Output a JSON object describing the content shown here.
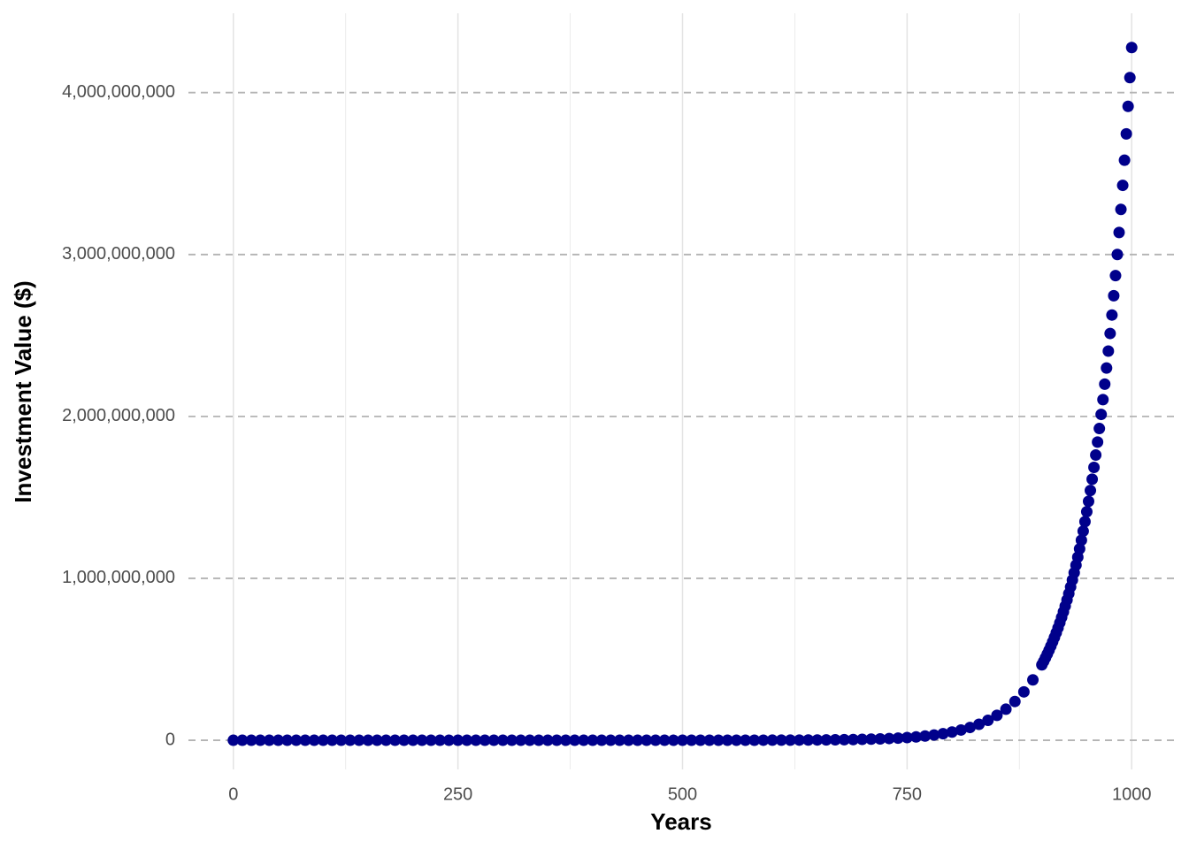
{
  "chart_data": {
    "type": "scatter",
    "x_label": "Years",
    "y_label": "Investment Value ($)",
    "xlim": [
      -50,
      1050
    ],
    "ylim": [
      -180000000,
      4490000000
    ],
    "xticks": [
      0,
      250,
      500,
      750,
      1000
    ],
    "x_minor_ticks": [
      125,
      375,
      625,
      875
    ],
    "yticks": [
      0,
      {
        "value": 1000000000,
        "label": "1,000,000,000"
      },
      {
        "value": 2000000000,
        "label": "2,000,000,000"
      },
      {
        "value": 3000000000,
        "label": "3,000,000,000"
      },
      {
        "value": 4000000000,
        "label": "4,000,000,000"
      }
    ],
    "grid": true,
    "series": [
      {
        "color": "#00008b",
        "x": [
          0,
          10,
          20,
          30,
          40,
          50,
          60,
          70,
          80,
          90,
          100,
          110,
          120,
          130,
          140,
          150,
          160,
          170,
          180,
          190,
          200,
          210,
          220,
          230,
          240,
          250,
          260,
          270,
          280,
          290,
          300,
          310,
          320,
          330,
          340,
          350,
          360,
          370,
          380,
          390,
          400,
          410,
          420,
          430,
          440,
          450,
          460,
          470,
          480,
          490,
          500,
          510,
          520,
          530,
          540,
          550,
          560,
          570,
          580,
          590,
          600,
          610,
          620,
          630,
          640,
          650,
          660,
          670,
          680,
          690,
          700,
          710,
          720,
          730,
          740,
          750,
          760,
          770,
          780,
          790,
          800,
          810,
          820,
          830,
          840,
          850,
          860,
          870,
          880,
          890,
          900,
          902,
          904,
          906,
          908,
          910,
          912,
          914,
          916,
          918,
          920,
          922,
          924,
          926,
          928,
          930,
          932,
          934,
          936,
          938,
          940,
          942,
          944,
          946,
          948,
          950,
          952,
          954,
          956,
          958,
          960,
          962,
          964,
          966,
          968,
          970,
          972,
          974,
          976,
          978,
          980,
          982,
          984,
          986,
          988,
          990,
          992,
          994,
          996,
          998,
          1000
        ],
        "values": [
          1,
          1.25,
          1.56,
          1.95,
          2.43,
          3.03,
          3.78,
          4.72,
          5.9,
          7.36,
          9.19,
          11.5,
          14.3,
          17.9,
          22.3,
          27.8,
          34.8,
          43.4,
          54.2,
          67.6,
          84.4,
          105,
          131,
          164,
          205,
          256,
          319,
          399,
          498,
          621,
          775,
          968,
          1208,
          1508,
          1882,
          2349,
          2933,
          3661,
          4570,
          5705,
          7120,
          8888,
          11095,
          13850,
          17289,
          21582,
          26940,
          33630,
          41980,
          52400,
          65400,
          81640,
          101900,
          127200,
          158800,
          198200,
          247500,
          308900,
          385600,
          481300,
          600800,
          750000,
          936200,
          1168700,
          1458900,
          1821000,
          2273000,
          2838000,
          3542000,
          4422000,
          5519000,
          6889000,
          8600000,
          10740000,
          13400000,
          16730000,
          20880000,
          26070000,
          32540000,
          40620000,
          50700000,
          63290000,
          79000000,
          98620000,
          123100000,
          153700000,
          191800000,
          239500000,
          298900000,
          373200000,
          465700000,
          486800000,
          508900000,
          532000000,
          556100000,
          581300000,
          607700000,
          635200000,
          664000000,
          694200000,
          725700000,
          758600000,
          793000000,
          828900000,
          866500000,
          905800000,
          946900000,
          989800000,
          1034700000,
          1081600000,
          1130700000,
          1182000000,
          1235600000,
          1291600000,
          1350200000,
          1411500000,
          1475500000,
          1542400000,
          1612300000,
          1685400000,
          1761900000,
          1841800000,
          1925300000,
          2012600000,
          2103900000,
          2199400000,
          2299100000,
          2403400000,
          2512400000,
          2626400000,
          2745500000,
          2870000000,
          3000200000,
          3136200000,
          3278500000,
          3427200000,
          3582600000,
          3745100000,
          3915000000,
          4092500000,
          4278200000
        ]
      }
    ]
  }
}
